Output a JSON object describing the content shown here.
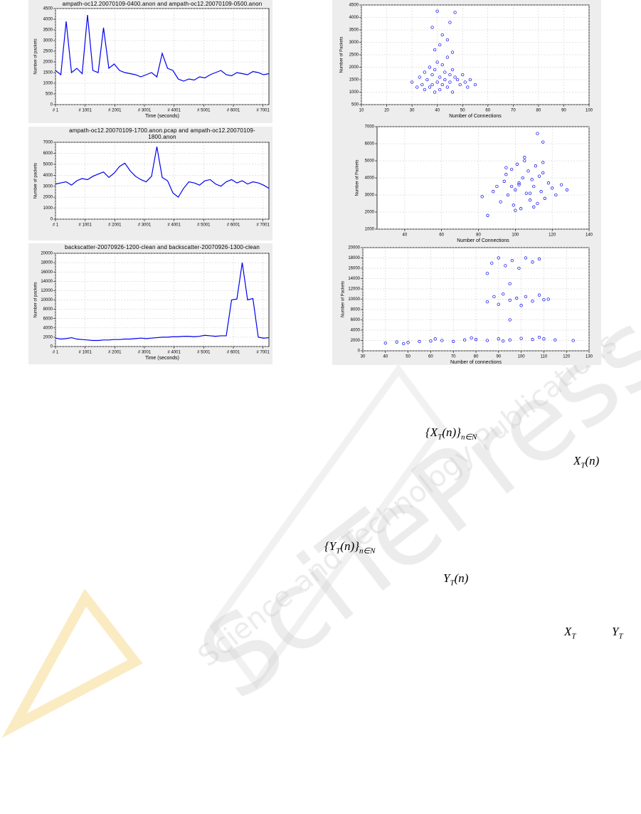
{
  "chart_data": [
    {
      "type": "line",
      "title": "ampath-oc12.20070109-0400.anon and ampath-oc12.20070109-0500.anon",
      "xlabel": "Time (seconds)",
      "ylabel": "Number of packets",
      "color": "#0000ee",
      "grid": true,
      "xlim": [
        1,
        7201
      ],
      "xticks": [
        {
          "value": 1,
          "label": "# 1"
        },
        {
          "value": 1001,
          "label": "# 1001"
        },
        {
          "value": 2001,
          "label": "# 2001"
        },
        {
          "value": 3001,
          "label": "# 3001"
        },
        {
          "value": 4001,
          "label": "# 4001"
        },
        {
          "value": 5001,
          "label": "# 5001"
        },
        {
          "value": 6001,
          "label": "# 6001"
        },
        {
          "value": 7001,
          "label": "# 7001"
        }
      ],
      "ylim": [
        0,
        4500
      ],
      "yticks": [
        0,
        500,
        1000,
        1500,
        2000,
        2500,
        3000,
        3500,
        4000,
        4500
      ],
      "x": [
        1,
        181,
        361,
        541,
        721,
        901,
        1081,
        1261,
        1441,
        1621,
        1801,
        1981,
        2161,
        2341,
        2521,
        2701,
        2881,
        3061,
        3241,
        3421,
        3601,
        3781,
        3961,
        4141,
        4321,
        4501,
        4681,
        4861,
        5041,
        5221,
        5401,
        5581,
        5761,
        5941,
        6121,
        6301,
        6481,
        6661,
        6841,
        7021,
        7201
      ],
      "values": [
        1600,
        1400,
        3900,
        1500,
        1700,
        1450,
        4200,
        1600,
        1500,
        3600,
        1700,
        1900,
        1600,
        1500,
        1450,
        1400,
        1300,
        1400,
        1500,
        1300,
        2400,
        1700,
        1600,
        1200,
        1100,
        1200,
        1150,
        1300,
        1250,
        1400,
        1500,
        1600,
        1400,
        1350,
        1500,
        1450,
        1400,
        1550,
        1500,
        1400,
        1450
      ]
    },
    {
      "type": "line",
      "title": "ampath-oc12.20070109-1700.anon.pcap and ampath-oc12.20070109-1800.anon",
      "ylabel": "Number of packets",
      "color": "#0000ee",
      "grid": true,
      "xlim": [
        1,
        7201
      ],
      "xticks": [
        {
          "value": 1,
          "label": "# 1"
        },
        {
          "value": 1001,
          "label": "# 1001"
        },
        {
          "value": 2001,
          "label": "# 2001"
        },
        {
          "value": 3001,
          "label": "# 3001"
        },
        {
          "value": 4001,
          "label": "# 4001"
        },
        {
          "value": 5001,
          "label": "# 5001"
        },
        {
          "value": 6001,
          "label": "# 6001"
        },
        {
          "value": 7001,
          "label": "# 7001"
        }
      ],
      "ylim": [
        0,
        7000
      ],
      "yticks": [
        0,
        1000,
        2000,
        3000,
        4000,
        5000,
        6000,
        7000
      ],
      "x": [
        1,
        181,
        361,
        541,
        721,
        901,
        1081,
        1261,
        1441,
        1621,
        1801,
        1981,
        2161,
        2341,
        2521,
        2701,
        2881,
        3061,
        3241,
        3421,
        3601,
        3781,
        3961,
        4141,
        4321,
        4501,
        4681,
        4861,
        5041,
        5221,
        5401,
        5581,
        5761,
        5941,
        6121,
        6301,
        6481,
        6661,
        6841,
        7021,
        7201
      ],
      "values": [
        3200,
        3300,
        3400,
        3100,
        3500,
        3700,
        3600,
        3900,
        4100,
        4300,
        3800,
        4200,
        4800,
        5100,
        4400,
        3900,
        3600,
        3400,
        3900,
        6600,
        3800,
        3500,
        2400,
        2000,
        2800,
        3400,
        3300,
        3100,
        3500,
        3600,
        3200,
        3000,
        3400,
        3600,
        3300,
        3500,
        3200,
        3400,
        3300,
        3100,
        2800
      ]
    },
    {
      "type": "line",
      "title": "backscatter-20070926-1200-clean and backscatter-20070926-1300-clean",
      "xlabel": "Time (seconds)",
      "ylabel": "Number of packets",
      "color": "#0000ee",
      "grid": true,
      "xlim": [
        1,
        7201
      ],
      "xticks": [
        {
          "value": 1,
          "label": "# 1"
        },
        {
          "value": 1001,
          "label": "# 1001"
        },
        {
          "value": 2001,
          "label": "# 2001"
        },
        {
          "value": 3001,
          "label": "# 3001"
        },
        {
          "value": 4001,
          "label": "# 4001"
        },
        {
          "value": 5001,
          "label": "# 5001"
        },
        {
          "value": 6001,
          "label": "# 6001"
        },
        {
          "value": 7001,
          "label": "# 7001"
        }
      ],
      "ylim": [
        0,
        20000
      ],
      "yticks": [
        0,
        2000,
        4000,
        6000,
        8000,
        10000,
        12000,
        14000,
        16000,
        18000,
        20000
      ],
      "x": [
        1,
        181,
        361,
        541,
        721,
        901,
        1081,
        1261,
        1441,
        1621,
        1801,
        1981,
        2161,
        2341,
        2521,
        2701,
        2881,
        3061,
        3241,
        3421,
        3601,
        3781,
        3961,
        4141,
        4321,
        4501,
        4681,
        4861,
        5041,
        5221,
        5401,
        5581,
        5761,
        5941,
        6121,
        6301,
        6481,
        6661,
        6841,
        7021,
        7201
      ],
      "values": [
        1800,
        1600,
        1700,
        1900,
        1600,
        1500,
        1400,
        1300,
        1300,
        1400,
        1400,
        1500,
        1500,
        1600,
        1600,
        1700,
        1800,
        1700,
        1800,
        1900,
        2000,
        2000,
        2100,
        2100,
        2200,
        2200,
        2100,
        2200,
        2400,
        2300,
        2200,
        2300,
        2300,
        10000,
        10200,
        18000,
        10000,
        10300,
        2000,
        1800,
        1900
      ]
    },
    {
      "type": "scatter",
      "xlabel": "Number of Connections",
      "ylabel": "Number of Packets",
      "color": "#0000ee",
      "grid": true,
      "xlim": [
        10,
        100
      ],
      "xticks": [
        10,
        20,
        30,
        40,
        50,
        60,
        70,
        80,
        90,
        100
      ],
      "ylim": [
        500,
        4500
      ],
      "yticks": [
        500,
        1000,
        1500,
        2000,
        2500,
        3000,
        3500,
        4000,
        4500
      ],
      "x": [
        30,
        32,
        33,
        34,
        35,
        35,
        36,
        37,
        37,
        38,
        38,
        39,
        39,
        40,
        40,
        41,
        41,
        42,
        42,
        43,
        43,
        44,
        44,
        45,
        45,
        46,
        46,
        47,
        48,
        49,
        50,
        51,
        52,
        53,
        55,
        38,
        40,
        41,
        44,
        45,
        47,
        39,
        42,
        46
      ],
      "values": [
        1400,
        1200,
        1600,
        1300,
        1800,
        1100,
        1500,
        2000,
        1200,
        1700,
        1300,
        1900,
        1000,
        2200,
        1400,
        1600,
        1100,
        2100,
        1300,
        1800,
        1500,
        2400,
        1200,
        1700,
        1400,
        1900,
        1000,
        1600,
        1500,
        1300,
        1700,
        1400,
        1200,
        1500,
        1300,
        3600,
        4250,
        2900,
        3100,
        3800,
        4200,
        2700,
        3300,
        2600
      ]
    },
    {
      "type": "scatter",
      "xlabel": "Number of Connections",
      "ylabel": "Number of Packets",
      "color": "#0000ee",
      "grid": true,
      "xlim": [
        25,
        140
      ],
      "xticks": [
        40,
        60,
        80,
        100,
        120,
        140
      ],
      "ylim": [
        1000,
        7000
      ],
      "yticks": [
        1000,
        2000,
        3000,
        4000,
        5000,
        6000,
        7000
      ],
      "x": [
        82,
        85,
        88,
        90,
        92,
        94,
        95,
        96,
        98,
        99,
        100,
        101,
        102,
        103,
        104,
        105,
        106,
        107,
        108,
        109,
        110,
        111,
        112,
        113,
        114,
        115,
        116,
        118,
        120,
        122,
        125,
        128,
        95,
        100,
        105,
        110,
        115,
        112,
        115,
        102,
        98,
        108
      ],
      "values": [
        2900,
        1800,
        3200,
        3500,
        2600,
        3800,
        4200,
        3000,
        4500,
        2400,
        3300,
        4800,
        3600,
        2200,
        4000,
        5000,
        3100,
        4400,
        2700,
        3900,
        3500,
        4700,
        2500,
        4100,
        3200,
        4300,
        2800,
        3700,
        3400,
        3000,
        3600,
        3300,
        4600,
        2100,
        5200,
        2300,
        4900,
        6600,
        6100,
        3700,
        3500,
        3100
      ]
    },
    {
      "type": "scatter",
      "xlabel": "Number of connections",
      "ylabel": "Number of Packets",
      "color": "#0000ee",
      "grid": true,
      "xlim": [
        30,
        130
      ],
      "xticks": [
        30,
        40,
        50,
        60,
        70,
        80,
        90,
        100,
        110,
        120,
        130
      ],
      "ylim": [
        0,
        20000
      ],
      "yticks": [
        0,
        2000,
        4000,
        6000,
        8000,
        10000,
        12000,
        14000,
        16000,
        18000,
        20000
      ],
      "x": [
        40,
        45,
        50,
        55,
        60,
        65,
        70,
        75,
        80,
        85,
        90,
        95,
        100,
        105,
        110,
        115,
        123,
        48,
        62,
        78,
        92,
        108,
        85,
        88,
        90,
        92,
        95,
        98,
        100,
        102,
        105,
        108,
        110,
        112,
        95,
        87,
        90,
        93,
        96,
        99,
        102,
        105,
        108,
        85,
        95
      ],
      "values": [
        1500,
        1700,
        1600,
        1800,
        1900,
        2000,
        1800,
        2100,
        2200,
        2000,
        2300,
        2100,
        2400,
        2200,
        2300,
        2100,
        2000,
        1400,
        2300,
        2500,
        1900,
        2600,
        9500,
        10500,
        9000,
        11000,
        9800,
        10200,
        8800,
        10500,
        9600,
        10800,
        9900,
        10000,
        6000,
        17000,
        18000,
        16500,
        17500,
        16000,
        18000,
        17200,
        17800,
        15000,
        13000
      ]
    }
  ],
  "formulas": [
    {
      "segments": [
        {
          "text": "{X",
          "sub": "T"
        },
        {
          "text": "(n)}",
          "sub": "n∈N"
        }
      ]
    },
    {
      "segments": [
        {
          "text": "X",
          "sub": "T"
        },
        {
          "text": "(n)"
        }
      ]
    },
    {
      "segments": [
        {
          "text": "{Y",
          "sub": "T"
        },
        {
          "text": "(n)}",
          "sub": "n∈N"
        }
      ]
    },
    {
      "segments": [
        {
          "text": "Y",
          "sub": "T"
        },
        {
          "text": "(n)"
        }
      ]
    },
    {
      "segments": [
        {
          "text": "X",
          "sub": "T"
        }
      ]
    },
    {
      "segments": [
        {
          "text": "Y",
          "sub": "T"
        }
      ]
    }
  ],
  "watermark": {
    "brand": "SciTePress",
    "tagline": "Science and Technology Publications"
  }
}
